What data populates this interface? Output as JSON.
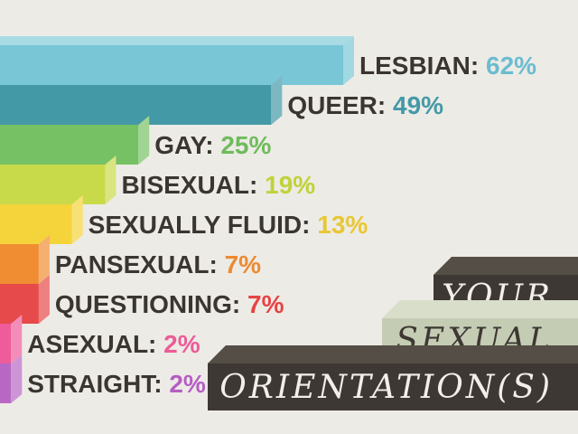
{
  "chart_data": {
    "type": "bar",
    "orientation": "horizontal",
    "categories": [
      "LESBIAN",
      "QUEER",
      "GAY",
      "BISEXUAL",
      "SEXUALLY FLUID",
      "PANSEXUAL",
      "QUESTIONING",
      "ASEXUAL",
      "STRAIGHT"
    ],
    "values": [
      62,
      49,
      25,
      19,
      13,
      7,
      7,
      2,
      2
    ],
    "labels": [
      "LESBIAN: ",
      "QUEER: ",
      "GAY: ",
      "BISEXUAL: ",
      "SEXUALLY FLUID: ",
      "PANSEXUAL: ",
      "QUESTIONING: ",
      "ASEXUAL: ",
      "STRAIGHT: "
    ],
    "value_labels": [
      "62%",
      "49%",
      "25%",
      "19%",
      "13%",
      "7%",
      "7%",
      "2%",
      "2%"
    ],
    "colors": [
      "#79c7d6",
      "#4499a7",
      "#76c163",
      "#c8da4a",
      "#f4d43a",
      "#f08d33",
      "#e74a4a",
      "#ee5c9a",
      "#b868c4"
    ],
    "value_colors": [
      "#6bbcd0",
      "#4499a7",
      "#6fbb5c",
      "#c1d23a",
      "#e8c735",
      "#ec8a30",
      "#e64444",
      "#ec5c98",
      "#b55ec3"
    ],
    "title_lines": [
      "YOUR",
      "SEXUAL",
      "ORIENTATION(S)"
    ],
    "grid": false,
    "legend": "none"
  },
  "colors": {
    "background": "#edebe6",
    "label_text": "#3a3531",
    "title_dark": "#3d3833",
    "title_dark_top": "#554e46",
    "title_light": "#c4ccb4",
    "title_light_top": "#d8dec9"
  }
}
